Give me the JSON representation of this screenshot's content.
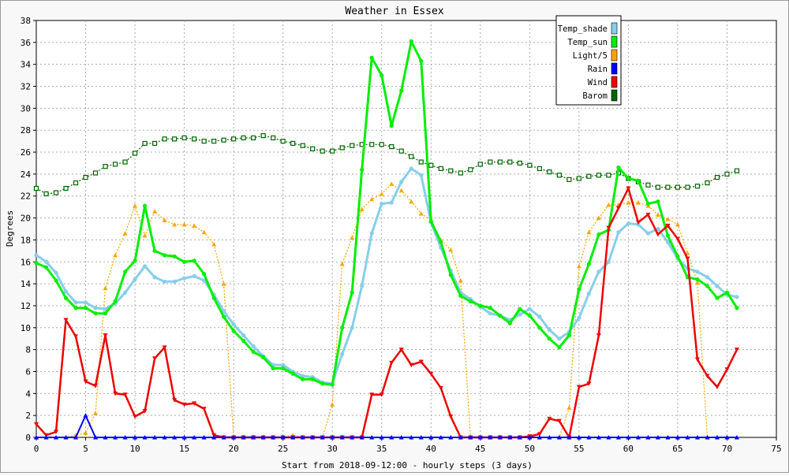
{
  "chart_data": {
    "type": "line",
    "title": "Weather in Essex",
    "xlabel": "Start from 2018-09-12:00 - hourly steps (3 days)",
    "ylabel": "Degrees",
    "xlim": [
      0,
      75
    ],
    "ylim": [
      0,
      38
    ],
    "x_ticks": [
      0,
      5,
      10,
      15,
      20,
      25,
      30,
      35,
      40,
      45,
      50,
      55,
      60,
      65,
      70,
      75
    ],
    "y_ticks": [
      0,
      2,
      4,
      6,
      8,
      10,
      12,
      14,
      16,
      18,
      20,
      22,
      24,
      26,
      28,
      30,
      32,
      34,
      36,
      38
    ],
    "grid": true,
    "legend_position": "top-right",
    "series": [
      {
        "name": "Temp_shade",
        "color": "#87ceeb",
        "values": [
          16.6,
          16.0,
          15.0,
          13.3,
          12.3,
          12.3,
          11.8,
          11.7,
          12.2,
          13.2,
          14.4,
          15.6,
          14.6,
          14.2,
          14.2,
          14.5,
          14.7,
          14.3,
          13.0,
          11.5,
          10.3,
          9.3,
          8.3,
          7.4,
          6.6,
          6.6,
          6.0,
          5.6,
          5.5,
          5.0,
          4.9,
          7.6,
          10.0,
          13.8,
          18.6,
          21.3,
          21.4,
          23.3,
          24.5,
          23.9,
          19.6,
          17.3,
          15.2,
          13.2,
          12.6,
          11.9,
          11.3,
          11.1,
          10.7,
          11.2,
          11.7,
          11.0,
          9.8,
          9.0,
          9.6,
          10.9,
          13.1,
          15.1,
          16.0,
          18.7,
          19.5,
          19.4,
          18.6,
          19.0,
          17.8,
          16.3,
          15.4,
          15.1,
          14.6,
          13.8,
          13.0,
          12.8
        ]
      },
      {
        "name": "Temp_sun",
        "color": "#00ee00",
        "values": [
          15.9,
          15.5,
          14.3,
          12.7,
          11.8,
          11.8,
          11.3,
          11.3,
          12.4,
          15.1,
          16.1,
          21.1,
          17.0,
          16.6,
          16.5,
          16.0,
          16.1,
          14.9,
          12.7,
          11.0,
          9.7,
          8.8,
          7.8,
          7.3,
          6.3,
          6.3,
          5.8,
          5.3,
          5.3,
          4.9,
          4.8,
          10.0,
          13.2,
          24.4,
          34.6,
          33.0,
          28.4,
          31.6,
          36.1,
          34.3,
          19.7,
          17.8,
          14.8,
          12.9,
          12.4,
          12.0,
          11.8,
          11.1,
          10.4,
          11.7,
          11.1,
          10.0,
          9.0,
          8.2,
          9.3,
          13.5,
          15.8,
          18.5,
          18.9,
          24.6,
          23.6,
          23.4,
          21.3,
          21.5,
          18.4,
          16.5,
          14.6,
          14.4,
          13.8,
          12.7,
          13.2,
          11.8
        ]
      },
      {
        "name": "Light/5",
        "color": "#ffa500",
        "values": [
          0,
          0,
          0,
          0,
          0.2,
          0.4,
          2.2,
          13.6,
          16.6,
          18.6,
          21.1,
          18.4,
          20.6,
          19.8,
          19.4,
          19.4,
          19.3,
          18.7,
          17.6,
          14.0,
          0,
          0,
          0,
          0,
          0,
          0,
          0.2,
          0,
          0,
          0,
          3.0,
          15.8,
          18.2,
          20.8,
          21.7,
          22.2,
          23.1,
          22.5,
          21.5,
          20.4,
          19.8,
          18.0,
          17.1,
          14.3,
          0,
          0,
          0,
          0,
          0,
          0,
          0,
          0,
          0,
          0,
          2.7,
          15.6,
          18.7,
          20.0,
          21.2,
          21.2,
          21.4,
          21.4,
          21.1,
          20.3,
          19.9,
          19.4,
          16.8,
          14.1,
          0,
          0,
          0,
          0
        ]
      },
      {
        "name": "Rain",
        "color": "#0000ff",
        "values": [
          0,
          0,
          0,
          0,
          0,
          2.0,
          0,
          0,
          0,
          0,
          0,
          0,
          0,
          0,
          0,
          0,
          0,
          0,
          0,
          0,
          0,
          0,
          0,
          0,
          0,
          0,
          0,
          0,
          0,
          0,
          0,
          0,
          0,
          0,
          0,
          0,
          0,
          0,
          0,
          0,
          0,
          0,
          0,
          0,
          0,
          0,
          0,
          0,
          0,
          0,
          0,
          0,
          0,
          0,
          0,
          0,
          0,
          0,
          0,
          0,
          0,
          0,
          0,
          0,
          0,
          0,
          0,
          0,
          0,
          0,
          0,
          0
        ]
      },
      {
        "name": "Wind",
        "color": "#ee0000",
        "values": [
          1.2,
          0.2,
          0.5,
          10.7,
          9.2,
          5.1,
          4.7,
          9.3,
          4.0,
          3.9,
          1.9,
          2.4,
          7.2,
          8.2,
          3.4,
          3.0,
          3.1,
          2.6,
          0.2,
          0,
          0,
          0,
          0,
          0,
          0,
          0,
          0,
          0,
          0,
          0,
          0,
          0,
          0,
          0,
          3.9,
          3.9,
          6.8,
          8.0,
          6.6,
          6.9,
          5.8,
          4.5,
          1.9,
          0,
          0,
          0,
          0,
          0,
          0,
          0,
          0.1,
          0.3,
          1.7,
          1.5,
          0,
          4.6,
          4.9,
          9.3,
          19.1,
          20.9,
          22.7,
          19.6,
          20.3,
          18.5,
          19.3,
          18.1,
          16.3,
          7.1,
          5.6,
          4.6,
          6.2,
          8.0
        ]
      },
      {
        "name": "Barom",
        "color": "#006400",
        "values": [
          22.7,
          22.2,
          22.3,
          22.7,
          23.2,
          23.7,
          24.1,
          24.7,
          24.9,
          25.1,
          25.9,
          26.8,
          26.8,
          27.2,
          27.2,
          27.3,
          27.2,
          27.0,
          27.0,
          27.1,
          27.2,
          27.3,
          27.3,
          27.5,
          27.3,
          27.0,
          26.8,
          26.6,
          26.3,
          26.1,
          26.1,
          26.4,
          26.6,
          26.7,
          26.7,
          26.7,
          26.5,
          26.1,
          25.6,
          25.1,
          24.8,
          24.5,
          24.3,
          24.1,
          24.4,
          24.9,
          25.1,
          25.1,
          25.1,
          25.0,
          24.8,
          24.5,
          24.2,
          23.9,
          23.5,
          23.6,
          23.8,
          23.9,
          23.9,
          24.1,
          23.6,
          23.3,
          23.0,
          22.8,
          22.8,
          22.8,
          22.8,
          22.9,
          23.2,
          23.7,
          24.0,
          24.3
        ]
      }
    ]
  }
}
